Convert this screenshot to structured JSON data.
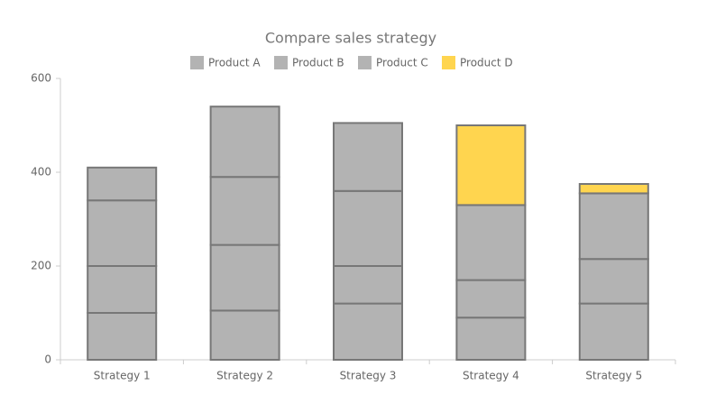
{
  "chart_data": {
    "type": "stacked-bar",
    "title": "Compare sales strategy",
    "categories": [
      "Strategy 1",
      "Strategy 2",
      "Strategy 3",
      "Strategy 4",
      "Strategy 5"
    ],
    "series": [
      {
        "name": "Product A",
        "color": "#b3b3b3",
        "values": [
          100,
          105,
          120,
          90,
          120
        ]
      },
      {
        "name": "Product B",
        "color": "#b3b3b3",
        "values": [
          100,
          140,
          80,
          80,
          95
        ]
      },
      {
        "name": "Product C",
        "color": "#b3b3b3",
        "values": [
          140,
          145,
          160,
          160,
          140
        ]
      },
      {
        "name": "Product D",
        "color": "#ffd54f",
        "point_colors": [
          "#b3b3b3",
          "#b3b3b3",
          "#b3b3b3",
          "#ffd54f",
          "#ffd54f"
        ],
        "values": [
          70,
          150,
          145,
          170,
          20
        ]
      }
    ],
    "ylim": [
      0,
      600
    ],
    "yticks": [
      0,
      200,
      400,
      600
    ]
  }
}
